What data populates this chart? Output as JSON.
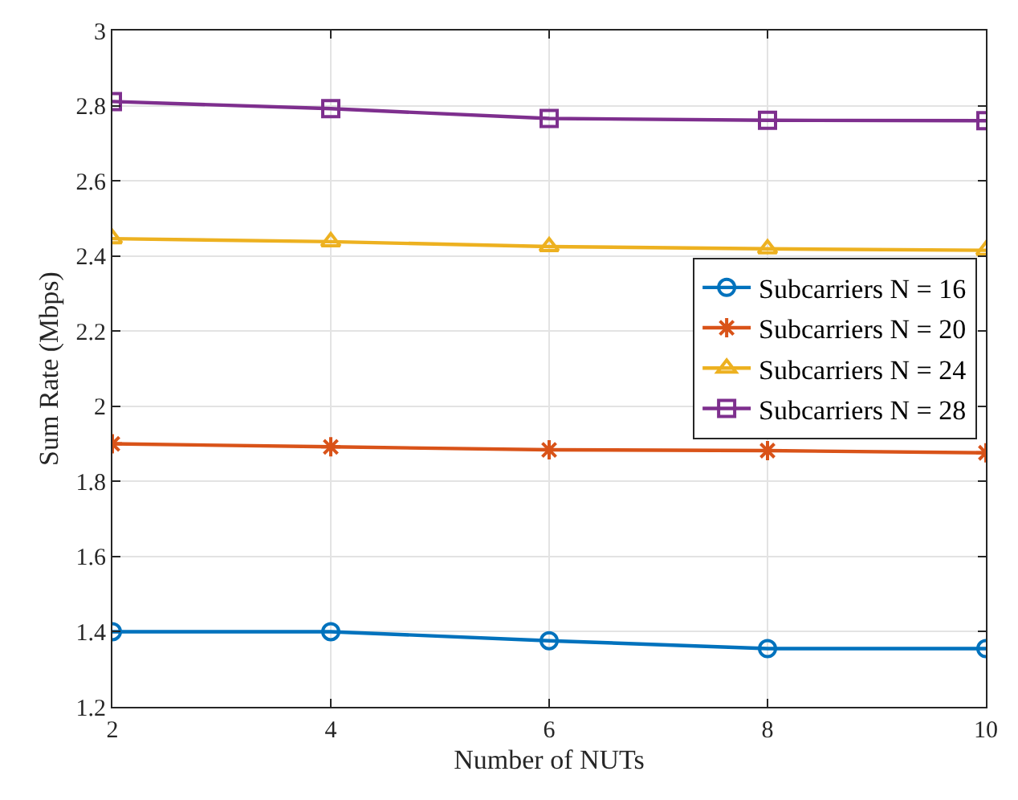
{
  "chart_data": {
    "type": "line",
    "xlabel": "Number of NUTs",
    "ylabel": "Sum Rate (Mbps)",
    "x": [
      2,
      4,
      6,
      8,
      10
    ],
    "series": [
      {
        "name": "Subcarriers N = 16",
        "color": "#0072bd",
        "marker": "circle",
        "values": [
          1.4,
          1.4,
          1.376,
          1.355,
          1.355
        ]
      },
      {
        "name": "Subcarriers N = 20",
        "color": "#d95319",
        "marker": "cross",
        "values": [
          1.9,
          1.892,
          1.884,
          1.882,
          1.876
        ]
      },
      {
        "name": "Subcarriers N = 24",
        "color": "#edb120",
        "marker": "triangle",
        "values": [
          2.446,
          2.438,
          2.425,
          2.419,
          2.415
        ]
      },
      {
        "name": "Subcarriers N = 28",
        "color": "#7e2f8e",
        "marker": "square",
        "values": [
          2.811,
          2.792,
          2.766,
          2.761,
          2.76
        ]
      }
    ],
    "xlim": [
      2,
      10
    ],
    "xticks": [
      2,
      4,
      6,
      8,
      10
    ],
    "ylim": [
      1.2,
      3
    ],
    "yticks": [
      1.2,
      1.4,
      1.6,
      1.8,
      2,
      2.2,
      2.4,
      2.6,
      2.8,
      3
    ],
    "grid": true,
    "legend": "right",
    "line_style": "solid"
  }
}
